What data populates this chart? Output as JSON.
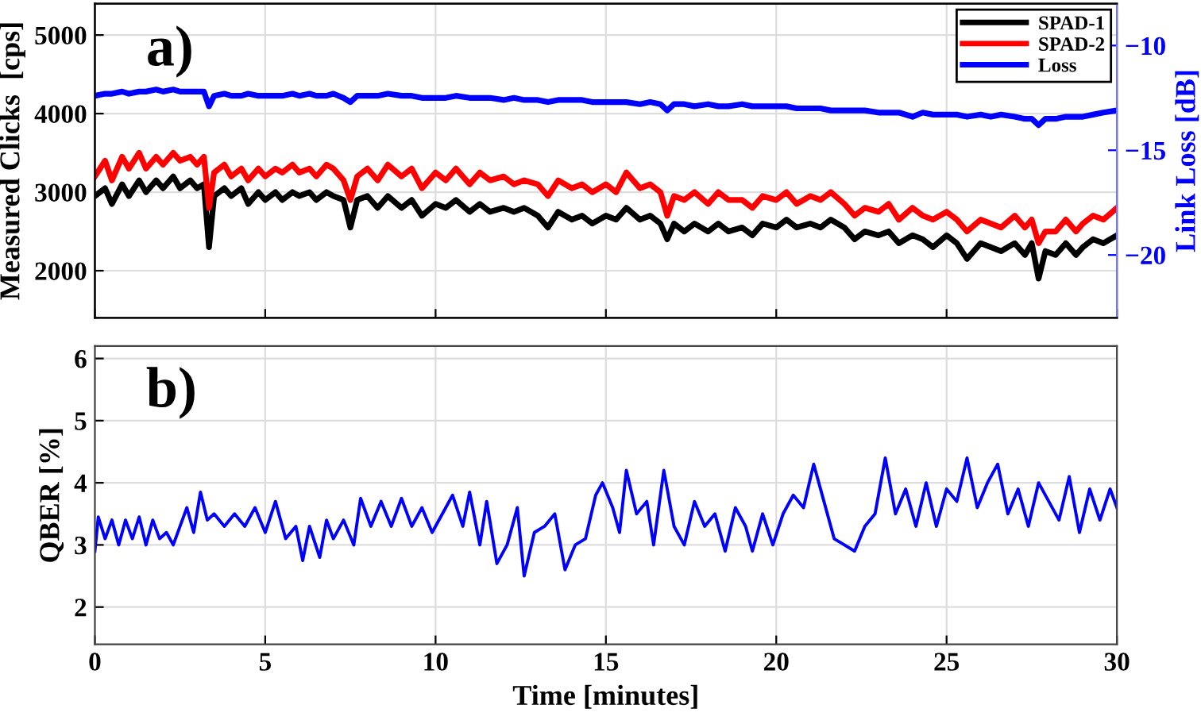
{
  "chart_data": [
    {
      "type": "line",
      "xlim": [
        0,
        30
      ],
      "xticks": [
        0,
        5,
        10,
        15,
        20,
        25,
        30
      ],
      "ylim": [
        1400,
        5400
      ],
      "yticks": [
        2000,
        3000,
        4000,
        5000
      ],
      "y2lim": [
        -23,
        -8
      ],
      "y2ticks": [
        -20,
        -15,
        -10
      ],
      "ylabel": "Measured Clicks  [cps]",
      "y2label": "Link Loss [dB]",
      "tick_labels": "y",
      "grid": true,
      "legend": "top right",
      "annotations": [
        "a)"
      ],
      "x": [
        0,
        0.3,
        0.5,
        0.8,
        1,
        1.3,
        1.5,
        1.8,
        2,
        2.3,
        2.5,
        2.8,
        3,
        3.2,
        3.35,
        3.5,
        3.8,
        4,
        4.3,
        4.5,
        4.8,
        5,
        5.3,
        5.5,
        5.8,
        6,
        6.3,
        6.5,
        6.8,
        7,
        7.3,
        7.5,
        7.7,
        8,
        8.3,
        8.6,
        9,
        9.3,
        9.6,
        10,
        10.3,
        10.6,
        11,
        11.3,
        11.6,
        12,
        12.3,
        12.6,
        13,
        13.3,
        13.6,
        14,
        14.3,
        14.6,
        15,
        15.3,
        15.6,
        16,
        16.3,
        16.6,
        16.8,
        17,
        17.3,
        17.6,
        18,
        18.3,
        18.6,
        19,
        19.3,
        19.6,
        20,
        20.3,
        20.6,
        21,
        21.3,
        21.6,
        22,
        22.3,
        22.6,
        23,
        23.3,
        23.6,
        24,
        24.3,
        24.6,
        25,
        25.3,
        25.6,
        26,
        26.3,
        26.6,
        27,
        27.3,
        27.5,
        27.7,
        27.9,
        28.2,
        28.5,
        28.8,
        29,
        29.3,
        29.6,
        30
      ],
      "series": [
        {
          "name": "SPAD-1",
          "color": "#000000",
          "values": [
            2950,
            3050,
            2850,
            3100,
            2950,
            3150,
            3000,
            3150,
            3050,
            3200,
            3050,
            3150,
            3050,
            3100,
            2300,
            2950,
            3050,
            2950,
            3050,
            2850,
            3000,
            2900,
            3000,
            2900,
            3000,
            2950,
            3000,
            2900,
            3000,
            2950,
            2900,
            2550,
            2900,
            2950,
            2800,
            2950,
            2800,
            2900,
            2700,
            2850,
            2800,
            2900,
            2750,
            2850,
            2750,
            2800,
            2750,
            2800,
            2700,
            2550,
            2750,
            2650,
            2700,
            2600,
            2700,
            2650,
            2800,
            2650,
            2700,
            2600,
            2400,
            2600,
            2500,
            2600,
            2500,
            2600,
            2500,
            2550,
            2450,
            2600,
            2550,
            2650,
            2550,
            2600,
            2550,
            2650,
            2550,
            2400,
            2500,
            2450,
            2500,
            2350,
            2450,
            2400,
            2300,
            2450,
            2350,
            2150,
            2350,
            2300,
            2250,
            2350,
            2200,
            2350,
            1900,
            2250,
            2200,
            2350,
            2200,
            2300,
            2400,
            2350,
            2450
          ]
        },
        {
          "name": "SPAD-2",
          "color": "#ff0000",
          "values": [
            3200,
            3400,
            3150,
            3450,
            3300,
            3500,
            3300,
            3450,
            3350,
            3500,
            3400,
            3450,
            3350,
            3450,
            2800,
            3250,
            3350,
            3200,
            3300,
            3150,
            3300,
            3200,
            3300,
            3250,
            3350,
            3250,
            3300,
            3200,
            3350,
            3300,
            3150,
            2900,
            3200,
            3300,
            3150,
            3350,
            3200,
            3300,
            3050,
            3250,
            3150,
            3300,
            3100,
            3250,
            3150,
            3200,
            3100,
            3150,
            3100,
            2950,
            3150,
            3050,
            3100,
            3000,
            3100,
            3000,
            3250,
            3050,
            3100,
            3000,
            2700,
            2950,
            2900,
            3000,
            2850,
            3000,
            2900,
            2900,
            2800,
            2950,
            2900,
            3000,
            2850,
            2950,
            2900,
            3000,
            2850,
            2700,
            2800,
            2750,
            2850,
            2650,
            2800,
            2700,
            2650,
            2750,
            2650,
            2500,
            2650,
            2600,
            2550,
            2700,
            2550,
            2650,
            2350,
            2500,
            2500,
            2650,
            2500,
            2600,
            2700,
            2650,
            2800
          ]
        },
        {
          "name": "Loss",
          "color": "#0000ff",
          "axis": "y2",
          "values": [
            -12.4,
            -12.3,
            -12.3,
            -12.2,
            -12.3,
            -12.2,
            -12.2,
            -12.1,
            -12.2,
            -12.1,
            -12.2,
            -12.2,
            -12.2,
            -12.2,
            -12.9,
            -12.4,
            -12.3,
            -12.4,
            -12.4,
            -12.3,
            -12.4,
            -12.4,
            -12.4,
            -12.4,
            -12.3,
            -12.4,
            -12.3,
            -12.4,
            -12.4,
            -12.3,
            -12.5,
            -12.7,
            -12.4,
            -12.4,
            -12.4,
            -12.3,
            -12.4,
            -12.4,
            -12.5,
            -12.5,
            -12.5,
            -12.4,
            -12.5,
            -12.5,
            -12.5,
            -12.6,
            -12.5,
            -12.6,
            -12.6,
            -12.7,
            -12.6,
            -12.6,
            -12.6,
            -12.7,
            -12.7,
            -12.7,
            -12.7,
            -12.8,
            -12.7,
            -12.8,
            -13.1,
            -12.8,
            -12.8,
            -12.9,
            -12.8,
            -12.9,
            -12.9,
            -12.8,
            -12.9,
            -12.9,
            -12.9,
            -12.9,
            -13.0,
            -13.0,
            -13.0,
            -13.1,
            -13.1,
            -13.1,
            -13.1,
            -13.2,
            -13.2,
            -13.2,
            -13.4,
            -13.2,
            -13.3,
            -13.3,
            -13.3,
            -13.4,
            -13.3,
            -13.4,
            -13.3,
            -13.4,
            -13.5,
            -13.5,
            -13.8,
            -13.5,
            -13.5,
            -13.4,
            -13.4,
            -13.4,
            -13.3,
            -13.2,
            -13.1
          ]
        }
      ]
    },
    {
      "type": "line",
      "xlim": [
        0,
        30
      ],
      "xticks": [
        0,
        5,
        10,
        15,
        20,
        25,
        30
      ],
      "ylim": [
        1.4,
        6.2
      ],
      "yticks": [
        2,
        3,
        4,
        5,
        6
      ],
      "xlabel": "Time [minutes]",
      "ylabel": "QBER [%]",
      "grid": true,
      "annotations": [
        "b)"
      ],
      "x": [
        0,
        0.1,
        0.3,
        0.5,
        0.7,
        0.9,
        1.1,
        1.3,
        1.5,
        1.7,
        1.9,
        2.1,
        2.3,
        2.5,
        2.7,
        2.9,
        3.1,
        3.3,
        3.5,
        3.8,
        4.1,
        4.4,
        4.7,
        5,
        5.3,
        5.6,
        5.9,
        6.1,
        6.3,
        6.6,
        6.8,
        7,
        7.3,
        7.6,
        7.8,
        8.1,
        8.4,
        8.7,
        9,
        9.3,
        9.6,
        9.9,
        10.2,
        10.5,
        10.8,
        11,
        11.3,
        11.5,
        11.8,
        12.1,
        12.4,
        12.6,
        12.9,
        13.2,
        13.5,
        13.8,
        14.1,
        14.4,
        14.7,
        14.9,
        15.2,
        15.4,
        15.6,
        15.9,
        16.2,
        16.4,
        16.7,
        17,
        17.3,
        17.6,
        17.9,
        18.2,
        18.5,
        18.8,
        19.1,
        19.3,
        19.6,
        19.9,
        20.2,
        20.5,
        20.8,
        21.1,
        21.4,
        21.7,
        22,
        22.3,
        22.6,
        22.9,
        23.2,
        23.5,
        23.8,
        24.1,
        24.4,
        24.7,
        25,
        25.3,
        25.6,
        25.9,
        26.2,
        26.5,
        26.8,
        27.1,
        27.4,
        27.7,
        28,
        28.3,
        28.6,
        28.9,
        29.2,
        29.5,
        29.8,
        30
      ],
      "series": [
        {
          "color": "#0000ff",
          "values": [
            2.9,
            3.45,
            3.1,
            3.4,
            3.0,
            3.4,
            3.1,
            3.45,
            3.0,
            3.4,
            3.1,
            3.2,
            3.0,
            3.3,
            3.6,
            3.2,
            3.85,
            3.4,
            3.5,
            3.3,
            3.5,
            3.3,
            3.6,
            3.2,
            3.7,
            3.1,
            3.3,
            2.75,
            3.3,
            2.8,
            3.4,
            3.1,
            3.4,
            3.0,
            3.75,
            3.3,
            3.7,
            3.3,
            3.75,
            3.3,
            3.6,
            3.2,
            3.5,
            3.8,
            3.3,
            3.85,
            3.0,
            3.7,
            2.7,
            3.0,
            3.6,
            2.5,
            3.2,
            3.3,
            3.5,
            2.6,
            3.0,
            3.1,
            3.8,
            4.0,
            3.6,
            3.2,
            4.2,
            3.5,
            3.7,
            3.0,
            4.2,
            3.3,
            3.0,
            3.7,
            3.3,
            3.5,
            2.9,
            3.6,
            3.3,
            2.9,
            3.5,
            3.0,
            3.5,
            3.8,
            3.6,
            4.3,
            3.7,
            3.1,
            3.0,
            2.9,
            3.3,
            3.5,
            4.4,
            3.5,
            3.9,
            3.3,
            4.0,
            3.3,
            3.9,
            3.7,
            4.4,
            3.6,
            4.0,
            4.3,
            3.5,
            3.9,
            3.3,
            4.0,
            3.7,
            3.4,
            4.1,
            3.2,
            3.9,
            3.4,
            3.9,
            3.6
          ]
        }
      ]
    }
  ]
}
